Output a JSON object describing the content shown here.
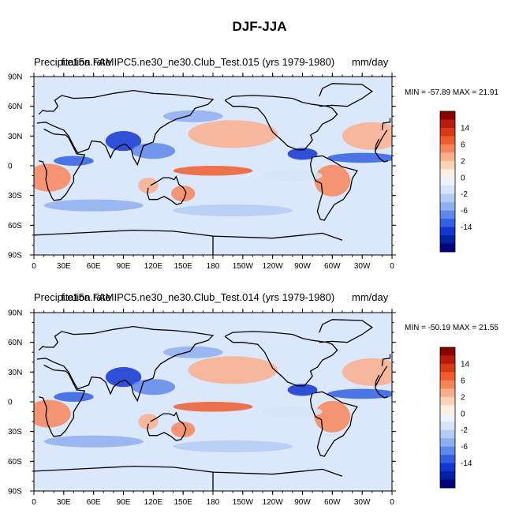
{
  "figure": {
    "title": "DJF-JJA"
  },
  "chart_data": [
    {
      "type": "heatmap",
      "title_left": "Precipitation rate",
      "title_center": "f.e15a.FAMIPC5.ne30_ne30.Club_Test.015 (yrs 1979-1980)",
      "title_right": "mm/day",
      "min_label": "MIN = -57.89",
      "max_label": "MAX =  21.91",
      "x_ticks": [
        "0",
        "30E",
        "60E",
        "90E",
        "120E",
        "150E",
        "180",
        "150W",
        "120W",
        "90W",
        "60W",
        "30W",
        "0"
      ],
      "y_ticks": [
        "90N",
        "60N",
        "30N",
        "0",
        "30S",
        "60S",
        "90S"
      ],
      "xlim": [
        0,
        360
      ],
      "ylim": [
        -90,
        90
      ]
    },
    {
      "type": "heatmap",
      "title_left": "Precipitation rate",
      "title_center": "f.e15a.FAMIPC5.ne30_ne30.Club_Test.014 (yrs 1979-1980)",
      "title_right": "mm/day",
      "min_label": "MIN = -50.19",
      "max_label": "MAX =  21.55",
      "x_ticks": [
        "0",
        "30E",
        "60E",
        "90E",
        "120E",
        "150E",
        "180",
        "150W",
        "120W",
        "90W",
        "60W",
        "30W",
        "0"
      ],
      "y_ticks": [
        "90N",
        "60N",
        "30N",
        "0",
        "30S",
        "60S",
        "90S"
      ],
      "xlim": [
        0,
        360
      ],
      "ylim": [
        -90,
        90
      ]
    }
  ],
  "colorbar": {
    "labels": [
      "14",
      "6",
      "2",
      "0",
      "-2",
      "-6",
      "-14"
    ],
    "colors": [
      "#8b0000",
      "#b81a0c",
      "#d93a16",
      "#ef5d2e",
      "#f8855a",
      "#fbae8c",
      "#fdd2b9",
      "#fdeee2",
      "#eef4fc",
      "#d6e4fa",
      "#b4cbf5",
      "#8eaef0",
      "#5f87ea",
      "#3160e3",
      "#1234d0",
      "#00229e",
      "#000080"
    ]
  }
}
